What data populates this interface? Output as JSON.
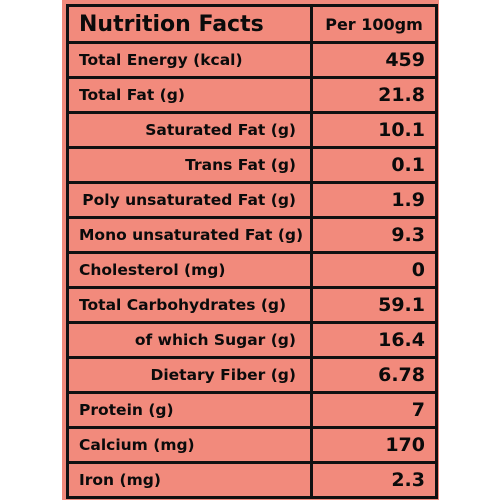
{
  "header": {
    "title": "Nutrition Facts",
    "per": "Per 100gm"
  },
  "rows": [
    {
      "label": "Total Energy (kcal)",
      "value": "459",
      "indent": false
    },
    {
      "label": "Total Fat (g)",
      "value": "21.8",
      "indent": false
    },
    {
      "label": "Saturated Fat (g)",
      "value": "10.1",
      "indent": true
    },
    {
      "label": "Trans Fat (g)",
      "value": "0.1",
      "indent": true
    },
    {
      "label": "Poly unsaturated Fat (g)",
      "value": "1.9",
      "indent": true
    },
    {
      "label": "Mono unsaturated Fat (g)",
      "value": "9.3",
      "indent": false
    },
    {
      "label": "Cholesterol (mg)",
      "value": "0",
      "indent": false
    },
    {
      "label": "Total Carbohydrates (g)",
      "value": "59.1",
      "indent": false
    },
    {
      "label": "of which Sugar (g)",
      "value": "16.4",
      "indent": true
    },
    {
      "label": "Dietary Fiber (g)",
      "value": "6.78",
      "indent": true
    },
    {
      "label": "Protein (g)",
      "value": "7",
      "indent": false
    },
    {
      "label": "Calcium (mg)",
      "value": "170",
      "indent": false
    },
    {
      "label": "Iron (mg)",
      "value": "2.3",
      "indent": false
    }
  ],
  "colors": {
    "background": "#f28a7c",
    "border": "#111111",
    "text": "#0b0b0b"
  }
}
